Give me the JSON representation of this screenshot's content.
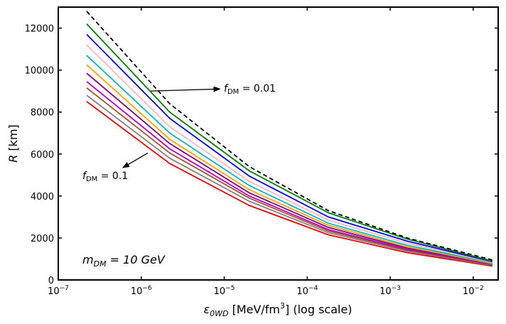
{
  "chart_data": {
    "type": "line",
    "title": "",
    "xlabel": "ε_0WD  [MeV/fm³] (log scale)",
    "ylabel": "R [km]",
    "xscale": "log",
    "xlim": [
      1e-07,
      0.02
    ],
    "ylim": [
      0,
      13000
    ],
    "grid": false,
    "x_ticks": [
      {
        "value": 1e-07,
        "base": "10",
        "exp": "−7"
      },
      {
        "value": 1e-06,
        "base": "10",
        "exp": "−6"
      },
      {
        "value": 1e-05,
        "base": "10",
        "exp": "−5"
      },
      {
        "value": 0.0001,
        "base": "10",
        "exp": "−4"
      },
      {
        "value": 0.001,
        "base": "10",
        "exp": "−3"
      },
      {
        "value": 0.01,
        "base": "10",
        "exp": "−2"
      }
    ],
    "y_ticks": [
      0,
      2000,
      4000,
      6000,
      8000,
      10000,
      12000
    ],
    "x": [
      2.2e-07,
      2.2e-06,
      2e-05,
      0.00018,
      0.0016,
      0.017
    ],
    "series": [
      {
        "name": "dashed reference",
        "color": "#000000",
        "dashed": true,
        "values": [
          12800,
          8400,
          5400,
          3300,
          2000,
          950
        ]
      },
      {
        "name": "green",
        "color": "#008000",
        "values": [
          12200,
          8000,
          5200,
          3200,
          1950,
          900
        ]
      },
      {
        "name": "blue",
        "color": "#0000ee",
        "values": [
          11700,
          7700,
          4950,
          3000,
          1850,
          870
        ]
      },
      {
        "name": "pink",
        "color": "#ffb6c1",
        "values": [
          11200,
          7300,
          4700,
          2850,
          1750,
          840
        ]
      },
      {
        "name": "cyan",
        "color": "#00bbbb",
        "values": [
          10700,
          7000,
          4500,
          2700,
          1650,
          810
        ]
      },
      {
        "name": "orange",
        "color": "#ffa500",
        "values": [
          10250,
          6700,
          4300,
          2600,
          1580,
          780
        ]
      },
      {
        "name": "purple",
        "color": "#800080",
        "values": [
          9850,
          6500,
          4150,
          2500,
          1520,
          760
        ]
      },
      {
        "name": "magenta",
        "color": "#bb00bb",
        "values": [
          9450,
          6250,
          4000,
          2400,
          1460,
          740
        ]
      },
      {
        "name": "brown",
        "color": "#a0522d",
        "values": [
          9150,
          6050,
          3900,
          2330,
          1420,
          720
        ]
      },
      {
        "name": "gray",
        "color": "#808080",
        "values": [
          8800,
          5800,
          3750,
          2250,
          1370,
          700
        ]
      },
      {
        "name": "red",
        "color": "#ee0000",
        "values": [
          8500,
          5550,
          3550,
          2150,
          1300,
          660
        ]
      }
    ],
    "annotations": [
      {
        "label": "f_DM = 0.01",
        "text_at": [
          1e-05,
          9100
        ],
        "arrow_to": [
          1.3e-06,
          9000
        ]
      },
      {
        "label": "f_DM = 0.1",
        "text_at": [
          2e-07,
          4850
        ],
        "arrow_to": [
          6e-07,
          5350
        ],
        "arrow_from": [
          1.2e-06,
          6050
        ]
      }
    ],
    "inset_text": "m_DM = 10 GeV"
  },
  "labels": {
    "f001_main": "f",
    "f001_sub": "DM",
    "f001_eq": " = 0.01",
    "f01_main": "f",
    "f01_sub": "DM",
    "f01_eq": " = 0.1",
    "mass_main": "m",
    "mass_sub": "DM",
    "mass_eq": " = 10 GeV",
    "x_eps": "ε",
    "x_sub": "0WD",
    "x_unit": "  [MeV/fm",
    "x_sup": "3",
    "x_tail": "] (log scale)",
    "y_R": "R",
    "y_unit": " [km]"
  }
}
